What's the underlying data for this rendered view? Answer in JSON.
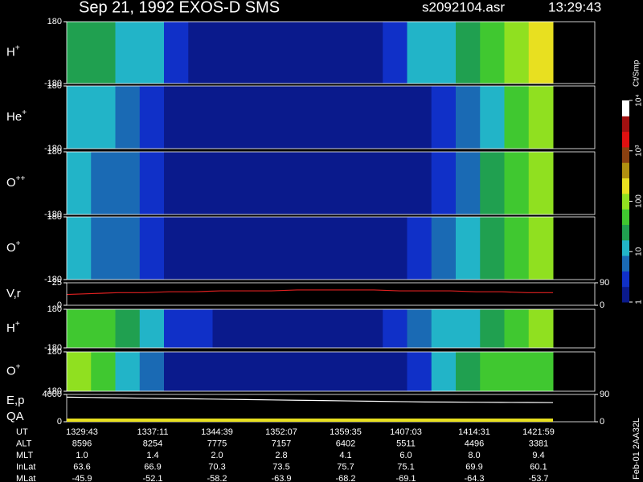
{
  "header": {
    "title": "Sep 21, 1992   EXOS-D SMS",
    "file": "s2092104.asr",
    "time": "13:29:43"
  },
  "side_label": "Feb-01 2AA32L",
  "colorbar": {
    "label": "Ct/Smp",
    "log": true,
    "ylim": [
      1,
      10000
    ],
    "colors": [
      "#0a1a8c",
      "#1030c8",
      "#1a6ab4",
      "#22b4c8",
      "#20a050",
      "#40c830",
      "#90e020",
      "#e8e020",
      "#b09010",
      "#8a4010",
      "#e01010",
      "#a01010",
      "#ffffff"
    ],
    "ticks": [
      1,
      10,
      100,
      {
        "value": 1000,
        "label": "10³"
      },
      {
        "value": 10000,
        "label": "10⁴"
      }
    ]
  },
  "chart_data": [
    {
      "type": "heatmap",
      "label": "H",
      "label_sup": "+",
      "ylim": [
        -180,
        180
      ],
      "yticks": [
        -180,
        180
      ],
      "values": [
        25,
        20,
        16,
        10,
        4,
        1.6,
        1.3,
        1.3,
        1.3,
        1.3,
        1.3,
        1.6,
        2,
        3,
        16,
        10,
        20,
        40,
        80,
        160
      ]
    },
    {
      "type": "heatmap",
      "label": "He",
      "label_sup": "+",
      "ylim": [
        -180,
        180
      ],
      "yticks": [
        -180,
        180
      ],
      "values": [
        10,
        10,
        6,
        3,
        1.6,
        1.3,
        1.3,
        1.3,
        1.3,
        1.3,
        1.3,
        1.3,
        1.3,
        1.6,
        2,
        3,
        6,
        16,
        40,
        80
      ]
    },
    {
      "type": "heatmap",
      "label": "O",
      "label_sup": "++",
      "ylim": [
        -180,
        180
      ],
      "yticks": [
        -180,
        180
      ],
      "values": [
        10,
        8,
        6,
        3,
        1.6,
        1.3,
        1.3,
        1.3,
        1.3,
        1.3,
        1.3,
        1.3,
        1.3,
        1.3,
        2,
        4,
        8,
        20,
        50,
        100
      ]
    },
    {
      "type": "heatmap",
      "label": "O",
      "label_sup": "+",
      "ylim": [
        -180,
        180
      ],
      "yticks": [
        -180,
        180
      ],
      "values": [
        10,
        8,
        6,
        4,
        1.6,
        1.3,
        1.3,
        1.3,
        1.3,
        1.3,
        1.3,
        1.3,
        1.3,
        1.6,
        2.5,
        5,
        10,
        25,
        60,
        120
      ]
    },
    {
      "type": "line",
      "label": "V,r",
      "color": "#e02020",
      "ylim": [
        0,
        25
      ],
      "yticks": [
        0,
        25
      ],
      "y2lim": [
        0,
        90
      ],
      "y2ticks": [
        0,
        90
      ],
      "values": [
        12,
        13,
        14,
        14,
        15,
        15,
        16,
        16,
        16,
        17,
        17,
        17,
        17,
        16,
        16,
        16,
        15,
        15,
        14,
        14
      ]
    },
    {
      "type": "heatmap",
      "label": "H",
      "label_sup": "+",
      "ylim": [
        -180,
        180
      ],
      "yticks": [
        -180,
        180
      ],
      "values": [
        60,
        40,
        25,
        10,
        4,
        2.5,
        1.6,
        1.3,
        1.3,
        1.3,
        1.3,
        1.3,
        1.6,
        3,
        6,
        10,
        16,
        30,
        60,
        120
      ]
    },
    {
      "type": "heatmap",
      "label": "O",
      "label_sup": "+",
      "ylim": [
        -180,
        180
      ],
      "yticks": [
        -180,
        180
      ],
      "values": [
        120,
        60,
        16,
        6,
        1.6,
        1.3,
        1.3,
        1.3,
        1.3,
        1.3,
        1.3,
        1.3,
        1.3,
        1.6,
        4,
        10,
        25,
        40,
        60,
        60
      ]
    },
    {
      "type": "line",
      "label": "E,p",
      "label2": "QA",
      "color": "#ffffff",
      "ylim": [
        0,
        4000
      ],
      "yticks": [
        0,
        4000
      ],
      "y2lim": [
        0,
        90
      ],
      "y2ticks": [
        0,
        90
      ],
      "values": [
        3600,
        3550,
        3500,
        3450,
        3400,
        3350,
        3300,
        3250,
        3200,
        3150,
        3100,
        3050,
        3000,
        2950,
        2900,
        2880,
        2860,
        2840,
        2820,
        2800
      ]
    }
  ],
  "table": {
    "rows": [
      [
        "UT",
        "1329:43",
        "1337:11",
        "1344:39",
        "1352:07",
        "1359:35",
        "1407:03",
        "1414:31",
        "1421:59"
      ],
      [
        "ALT",
        "8596",
        "8254",
        "7775",
        "7157",
        "6402",
        "5511",
        "4496",
        "3381"
      ],
      [
        "MLT",
        "1.0",
        "1.4",
        "2.0",
        "2.8",
        "4.1",
        "6.0",
        "8.0",
        "9.4"
      ],
      [
        "InLat",
        "63.6",
        "66.9",
        "70.3",
        "73.5",
        "75.7",
        "75.1",
        "69.9",
        "60.1"
      ],
      [
        "MLat",
        "-45.9",
        "-52.1",
        "-58.2",
        "-63.9",
        "-68.2",
        "-69.1",
        "-64.3",
        "-53.7"
      ]
    ]
  }
}
